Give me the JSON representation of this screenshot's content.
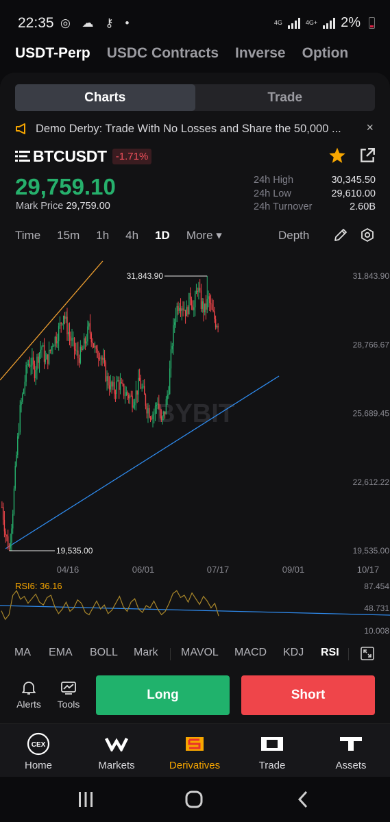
{
  "status_bar": {
    "time": "22:35",
    "network_1": "4G",
    "network_2": "4G+",
    "battery": "2%"
  },
  "product_tabs": [
    {
      "label": "USDT-Perp",
      "active": true
    },
    {
      "label": "USDC Contracts",
      "active": false
    },
    {
      "label": "Inverse",
      "active": false
    },
    {
      "label": "Option",
      "active": false
    }
  ],
  "view_switch": {
    "charts": "Charts",
    "trade": "Trade",
    "active": "Charts"
  },
  "announcement": {
    "text": "Demo Derby: Trade With No Losses and Share the 50,000 ...",
    "close": "×"
  },
  "ticker": {
    "symbol": "BTCUSDT",
    "change": "-1.71%",
    "last_price": "29,759.10",
    "mark_price_label": "Mark Price",
    "mark_price": "29,759.00",
    "stats": [
      {
        "label": "24h High",
        "value": "30,345.50"
      },
      {
        "label": "24h Low",
        "value": "29,610.00"
      },
      {
        "label": "24h Turnover",
        "value": "2.60B"
      }
    ]
  },
  "intervals": {
    "items": [
      "Time",
      "15m",
      "1h",
      "4h",
      "1D",
      "More ▾"
    ],
    "active": "1D",
    "depth_label": "Depth"
  },
  "colors": {
    "up": "#26b06c",
    "down": "#ef454a",
    "accent": "#f7a600",
    "trendline_upper": "#f0a030",
    "trendline_lower": "#2f8cf0"
  },
  "chart_data": {
    "type": "candlestick",
    "watermark": "BYBIT",
    "y_ticks": [
      "31,843.90",
      "28,766.67",
      "25,689.45",
      "22,612.22",
      "19,535.00"
    ],
    "ylim": [
      19535.0,
      31843.9
    ],
    "x_ticks": [
      "04/16",
      "06/01",
      "07/17",
      "09/01",
      "10/17"
    ],
    "high_marker": "31,843.90",
    "low_marker": "19,535.00",
    "close_path": [
      21500,
      20300,
      19600,
      21400,
      23800,
      25800,
      26800,
      27900,
      28000,
      27600,
      28300,
      28700,
      28000,
      28300,
      28900,
      29100,
      29600,
      30200,
      29500,
      29000,
      28600,
      28200,
      28400,
      28900,
      29500,
      29000,
      28300,
      28500,
      27900,
      27200,
      26900,
      26700,
      27100,
      26800,
      26600,
      26500,
      26300,
      26600,
      27100,
      26600,
      26000,
      25700,
      25700,
      26300,
      25200,
      25800,
      26900,
      28900,
      30300,
      30700,
      30500,
      30200,
      31000,
      30400,
      31400,
      30600,
      30300,
      30800,
      30200,
      29800,
      29760
    ],
    "rsi": {
      "label": "RSI6: 36.16",
      "y_ticks": [
        "87.454",
        "48.731",
        "10.008"
      ],
      "values": [
        45,
        30,
        38,
        72,
        80,
        65,
        70,
        58,
        66,
        74,
        60,
        55,
        68,
        72,
        52,
        40,
        48,
        60,
        44,
        50,
        64,
        58,
        42,
        38,
        50,
        62,
        48,
        55,
        40,
        46,
        58,
        70,
        52,
        44,
        60,
        66,
        48,
        42,
        54,
        50,
        62,
        48,
        38,
        44,
        58,
        75,
        80,
        68,
        72,
        60,
        76,
        66,
        56,
        70,
        62,
        50,
        58,
        36
      ]
    }
  },
  "indicators": {
    "items": [
      "MA",
      "EMA",
      "BOLL",
      "Mark",
      "MAVOL",
      "MACD",
      "KDJ",
      "RSI"
    ],
    "active": "RSI"
  },
  "actions": {
    "alerts": "Alerts",
    "tools": "Tools",
    "long": "Long",
    "short": "Short"
  },
  "bottom_nav": [
    {
      "label": "Home",
      "icon": "cex-icon",
      "active": false
    },
    {
      "label": "Markets",
      "icon": "markets-icon",
      "active": false
    },
    {
      "label": "Derivatives",
      "icon": "derivatives-icon",
      "active": true
    },
    {
      "label": "Trade",
      "icon": "trade-icon",
      "active": false
    },
    {
      "label": "Assets",
      "icon": "assets-icon",
      "active": false
    }
  ]
}
